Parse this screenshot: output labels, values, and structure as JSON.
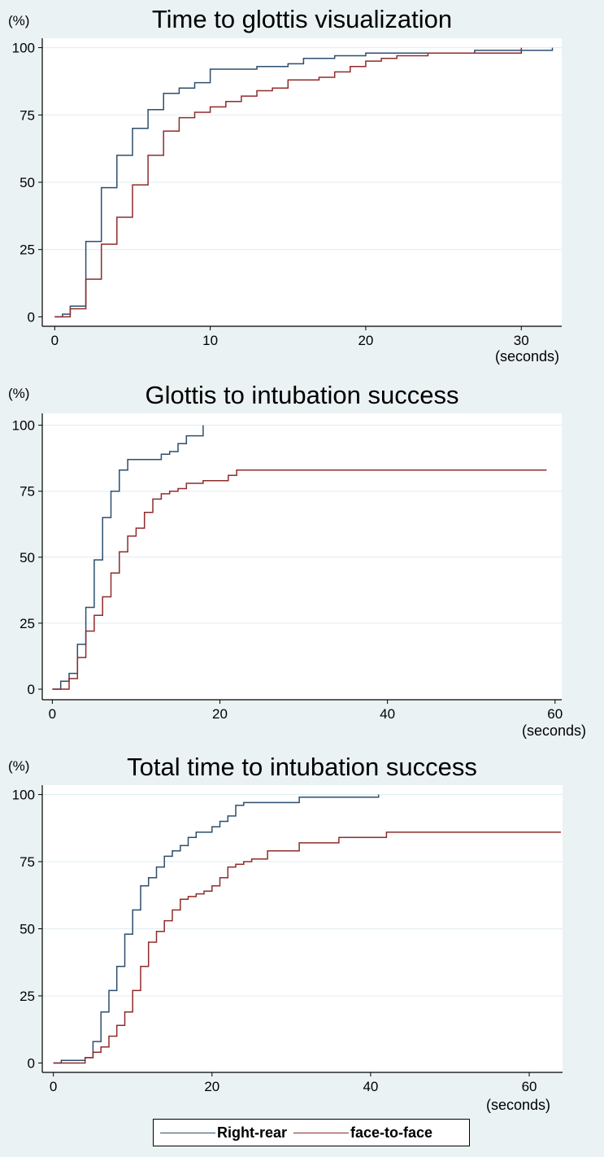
{
  "colors": {
    "right_rear": "#2c4e6e",
    "face_to_face": "#8f2b2b",
    "plot_bg": "#ffffff",
    "grid": "#e1ecee"
  },
  "legend": {
    "items": [
      {
        "label": "Right-rear",
        "color": "#2c4e6e"
      },
      {
        "label": "face-to-face",
        "color": "#8f2b2b"
      }
    ]
  },
  "chart_data": [
    {
      "type": "line",
      "title": "Time to glottis visualization",
      "ylabel": "(%)",
      "xlabel": "(seconds)",
      "xlim": [
        -0.8,
        32.6
      ],
      "ylim": [
        -3.5,
        103.5
      ],
      "xticks": [
        0,
        10,
        20,
        30
      ],
      "yticks": [
        0,
        25,
        50,
        75,
        100
      ],
      "series": [
        {
          "name": "Right-rear",
          "color": "#2c4e6e",
          "points": [
            [
              0,
              0
            ],
            [
              0.5,
              0
            ],
            [
              0.5,
              1
            ],
            [
              1,
              1
            ],
            [
              1,
              4
            ],
            [
              2,
              4
            ],
            [
              2,
              28
            ],
            [
              3,
              28
            ],
            [
              3,
              48
            ],
            [
              4,
              48
            ],
            [
              4,
              60
            ],
            [
              5,
              60
            ],
            [
              5,
              70
            ],
            [
              6,
              70
            ],
            [
              6,
              77
            ],
            [
              7,
              77
            ],
            [
              7,
              83
            ],
            [
              8,
              83
            ],
            [
              8,
              85
            ],
            [
              9,
              85
            ],
            [
              9,
              87
            ],
            [
              10,
              87
            ],
            [
              10,
              92
            ],
            [
              13,
              92
            ],
            [
              13,
              93
            ],
            [
              15,
              93
            ],
            [
              15,
              94
            ],
            [
              16,
              94
            ],
            [
              16,
              96
            ],
            [
              18,
              96
            ],
            [
              18,
              97
            ],
            [
              20,
              97
            ],
            [
              20,
              98
            ],
            [
              27,
              98
            ],
            [
              27,
              99
            ],
            [
              32,
              99
            ],
            [
              32,
              100
            ]
          ]
        },
        {
          "name": "face-to-face",
          "color": "#8f2b2b",
          "points": [
            [
              0,
              0
            ],
            [
              1,
              0
            ],
            [
              1,
              3
            ],
            [
              2,
              3
            ],
            [
              2,
              14
            ],
            [
              3,
              14
            ],
            [
              3,
              27
            ],
            [
              4,
              27
            ],
            [
              4,
              37
            ],
            [
              5,
              37
            ],
            [
              5,
              49
            ],
            [
              6,
              49
            ],
            [
              6,
              60
            ],
            [
              7,
              60
            ],
            [
              7,
              69
            ],
            [
              8,
              69
            ],
            [
              8,
              74
            ],
            [
              9,
              74
            ],
            [
              9,
              76
            ],
            [
              10,
              76
            ],
            [
              10,
              78
            ],
            [
              11,
              78
            ],
            [
              11,
              80
            ],
            [
              12,
              80
            ],
            [
              12,
              82
            ],
            [
              13,
              82
            ],
            [
              13,
              84
            ],
            [
              14,
              84
            ],
            [
              14,
              85
            ],
            [
              15,
              85
            ],
            [
              15,
              88
            ],
            [
              17,
              88
            ],
            [
              17,
              89
            ],
            [
              18,
              89
            ],
            [
              18,
              91
            ],
            [
              19,
              91
            ],
            [
              19,
              93
            ],
            [
              20,
              93
            ],
            [
              20,
              95
            ],
            [
              21,
              95
            ],
            [
              21,
              96
            ],
            [
              22,
              96
            ],
            [
              22,
              97
            ],
            [
              24,
              97
            ],
            [
              24,
              98
            ],
            [
              30,
              98
            ],
            [
              30,
              100
            ]
          ]
        }
      ]
    },
    {
      "type": "line",
      "title": "Glottis to intubation success",
      "ylabel": "(%)",
      "xlabel": "(seconds)",
      "xlim": [
        -1.2,
        60.8
      ],
      "ylim": [
        -4,
        104.5
      ],
      "xticks": [
        0,
        20,
        40,
        60
      ],
      "yticks": [
        0,
        25,
        50,
        75,
        100
      ],
      "series": [
        {
          "name": "Right-rear",
          "color": "#2c4e6e",
          "points": [
            [
              0,
              0
            ],
            [
              1,
              0
            ],
            [
              1,
              3
            ],
            [
              2,
              3
            ],
            [
              2,
              6
            ],
            [
              3,
              6
            ],
            [
              3,
              17
            ],
            [
              4,
              17
            ],
            [
              4,
              31
            ],
            [
              5,
              31
            ],
            [
              5,
              49
            ],
            [
              6,
              49
            ],
            [
              6,
              65
            ],
            [
              7,
              65
            ],
            [
              7,
              75
            ],
            [
              8,
              75
            ],
            [
              8,
              83
            ],
            [
              9,
              83
            ],
            [
              9,
              87
            ],
            [
              13,
              87
            ],
            [
              13,
              89
            ],
            [
              14,
              89
            ],
            [
              14,
              90
            ],
            [
              15,
              90
            ],
            [
              15,
              93
            ],
            [
              16,
              93
            ],
            [
              16,
              96
            ],
            [
              18,
              96
            ],
            [
              18,
              100
            ]
          ]
        },
        {
          "name": "face-to-face",
          "color": "#8f2b2b",
          "points": [
            [
              0,
              0
            ],
            [
              2,
              0
            ],
            [
              2,
              4
            ],
            [
              3,
              4
            ],
            [
              3,
              12
            ],
            [
              4,
              12
            ],
            [
              4,
              22
            ],
            [
              5,
              22
            ],
            [
              5,
              28
            ],
            [
              6,
              28
            ],
            [
              6,
              35
            ],
            [
              7,
              35
            ],
            [
              7,
              44
            ],
            [
              8,
              44
            ],
            [
              8,
              52
            ],
            [
              9,
              52
            ],
            [
              9,
              58
            ],
            [
              10,
              58
            ],
            [
              10,
              61
            ],
            [
              11,
              61
            ],
            [
              11,
              67
            ],
            [
              12,
              67
            ],
            [
              12,
              72
            ],
            [
              13,
              72
            ],
            [
              13,
              74
            ],
            [
              14,
              74
            ],
            [
              14,
              75
            ],
            [
              15,
              75
            ],
            [
              15,
              76
            ],
            [
              16,
              76
            ],
            [
              16,
              78
            ],
            [
              18,
              78
            ],
            [
              18,
              79
            ],
            [
              21,
              79
            ],
            [
              21,
              81
            ],
            [
              22,
              81
            ],
            [
              22,
              83
            ],
            [
              59,
              83
            ]
          ]
        }
      ]
    },
    {
      "type": "line",
      "title": "Total time to intubation success",
      "ylabel": "(%)",
      "xlabel": "(seconds)",
      "xlim": [
        -1.4,
        64.2
      ],
      "ylim": [
        -3.5,
        103.5
      ],
      "xticks": [
        0,
        20,
        40,
        60
      ],
      "yticks": [
        0,
        25,
        50,
        75,
        100
      ],
      "series": [
        {
          "name": "Right-rear",
          "color": "#2c4e6e",
          "points": [
            [
              0,
              0
            ],
            [
              1,
              0
            ],
            [
              1,
              1
            ],
            [
              4,
              1
            ],
            [
              4,
              2
            ],
            [
              5,
              2
            ],
            [
              5,
              8
            ],
            [
              6,
              8
            ],
            [
              6,
              19
            ],
            [
              7,
              19
            ],
            [
              7,
              27
            ],
            [
              8,
              27
            ],
            [
              8,
              36
            ],
            [
              9,
              36
            ],
            [
              9,
              48
            ],
            [
              10,
              48
            ],
            [
              10,
              57
            ],
            [
              11,
              57
            ],
            [
              11,
              66
            ],
            [
              12,
              66
            ],
            [
              12,
              69
            ],
            [
              13,
              69
            ],
            [
              13,
              73
            ],
            [
              14,
              73
            ],
            [
              14,
              77
            ],
            [
              15,
              77
            ],
            [
              15,
              79
            ],
            [
              16,
              79
            ],
            [
              16,
              81
            ],
            [
              17,
              81
            ],
            [
              17,
              84
            ],
            [
              18,
              84
            ],
            [
              18,
              86
            ],
            [
              20,
              86
            ],
            [
              20,
              88
            ],
            [
              21,
              88
            ],
            [
              21,
              90
            ],
            [
              22,
              90
            ],
            [
              22,
              92
            ],
            [
              23,
              92
            ],
            [
              23,
              96
            ],
            [
              24,
              96
            ],
            [
              24,
              97
            ],
            [
              31,
              97
            ],
            [
              31,
              99
            ],
            [
              41,
              99
            ],
            [
              41,
              100
            ]
          ]
        },
        {
          "name": "face-to-face",
          "color": "#8f2b2b",
          "points": [
            [
              0,
              0
            ],
            [
              4,
              0
            ],
            [
              4,
              2
            ],
            [
              5,
              2
            ],
            [
              5,
              4
            ],
            [
              6,
              4
            ],
            [
              6,
              6
            ],
            [
              7,
              6
            ],
            [
              7,
              10
            ],
            [
              8,
              10
            ],
            [
              8,
              14
            ],
            [
              9,
              14
            ],
            [
              9,
              19
            ],
            [
              10,
              19
            ],
            [
              10,
              27
            ],
            [
              11,
              27
            ],
            [
              11,
              36
            ],
            [
              12,
              36
            ],
            [
              12,
              45
            ],
            [
              13,
              45
            ],
            [
              13,
              49
            ],
            [
              14,
              49
            ],
            [
              14,
              53
            ],
            [
              15,
              53
            ],
            [
              15,
              57
            ],
            [
              16,
              57
            ],
            [
              16,
              61
            ],
            [
              17,
              61
            ],
            [
              17,
              62
            ],
            [
              18,
              62
            ],
            [
              18,
              63
            ],
            [
              19,
              63
            ],
            [
              19,
              64
            ],
            [
              20,
              64
            ],
            [
              20,
              66
            ],
            [
              21,
              66
            ],
            [
              21,
              69
            ],
            [
              22,
              69
            ],
            [
              22,
              73
            ],
            [
              23,
              73
            ],
            [
              23,
              74
            ],
            [
              24,
              74
            ],
            [
              24,
              75
            ],
            [
              25,
              75
            ],
            [
              25,
              76
            ],
            [
              27,
              76
            ],
            [
              27,
              79
            ],
            [
              31,
              79
            ],
            [
              31,
              82
            ],
            [
              36,
              82
            ],
            [
              36,
              84
            ],
            [
              42,
              84
            ],
            [
              42,
              86
            ],
            [
              64,
              86
            ]
          ]
        }
      ]
    }
  ]
}
